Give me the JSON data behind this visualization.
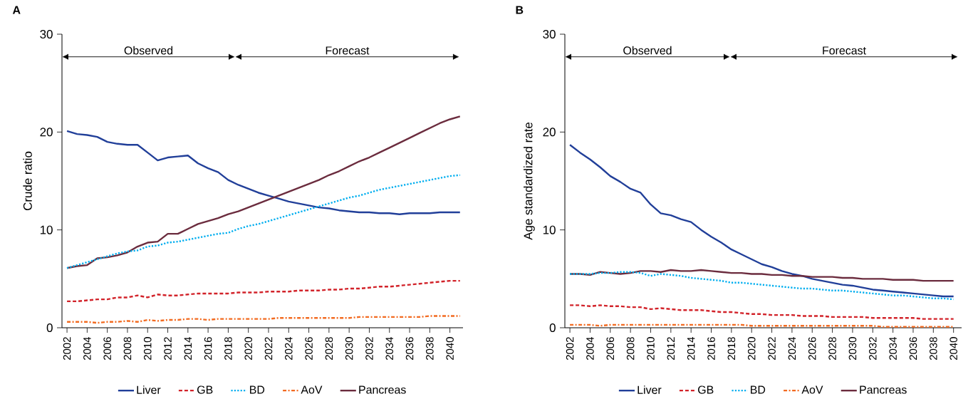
{
  "chart_data": [
    {
      "type": "line",
      "title": "A",
      "ylabel": "Crude ratio",
      "legend": "bottom",
      "x": [
        2002,
        2003,
        2004,
        2005,
        2006,
        2007,
        2008,
        2009,
        2010,
        2011,
        2012,
        2013,
        2014,
        2015,
        2016,
        2017,
        2018,
        2019,
        2020,
        2021,
        2022,
        2023,
        2024,
        2025,
        2026,
        2027,
        2028,
        2029,
        2030,
        2031,
        2032,
        2033,
        2034,
        2035,
        2036,
        2037,
        2038,
        2039,
        2040,
        2041
      ],
      "xlim": [
        2001.5,
        2041.3
      ],
      "xticks": [
        2002,
        2004,
        2006,
        2008,
        2010,
        2012,
        2014,
        2016,
        2018,
        2020,
        2022,
        2024,
        2026,
        2028,
        2030,
        2032,
        2034,
        2036,
        2038,
        2040
      ],
      "ylim": [
        0,
        30
      ],
      "yticks": [
        0,
        10,
        20,
        30
      ],
      "annotations": [
        "Observed",
        "Forecast"
      ],
      "series": [
        {
          "name": "Liver",
          "color": "#213f99",
          "line_style": "solid",
          "values": [
            20.1,
            19.8,
            19.7,
            19.5,
            19.0,
            18.8,
            18.7,
            18.7,
            17.9,
            17.1,
            17.4,
            17.5,
            17.6,
            16.8,
            16.3,
            15.9,
            15.1,
            14.6,
            14.2,
            13.8,
            13.5,
            13.2,
            12.9,
            12.7,
            12.5,
            12.3,
            12.2,
            12.0,
            11.9,
            11.8,
            11.8,
            11.7,
            11.7,
            11.6,
            11.7,
            11.7,
            11.7,
            11.8,
            11.8,
            11.8
          ]
        },
        {
          "name": "GB",
          "color": "#d2232a",
          "line_style": "dashed",
          "values": [
            2.7,
            2.7,
            2.8,
            2.9,
            2.9,
            3.1,
            3.1,
            3.3,
            3.1,
            3.4,
            3.3,
            3.3,
            3.4,
            3.5,
            3.5,
            3.5,
            3.5,
            3.6,
            3.6,
            3.6,
            3.7,
            3.7,
            3.7,
            3.8,
            3.8,
            3.8,
            3.9,
            3.9,
            4.0,
            4.0,
            4.1,
            4.2,
            4.2,
            4.3,
            4.4,
            4.5,
            4.6,
            4.7,
            4.8,
            4.8
          ]
        },
        {
          "name": "BD",
          "color": "#00aeef",
          "line_style": "dotted",
          "values": [
            6.1,
            6.4,
            6.7,
            7.0,
            7.3,
            7.6,
            7.8,
            7.9,
            8.3,
            8.4,
            8.7,
            8.8,
            9.0,
            9.2,
            9.4,
            9.6,
            9.7,
            10.1,
            10.4,
            10.6,
            10.9,
            11.2,
            11.5,
            11.8,
            12.1,
            12.4,
            12.7,
            13.0,
            13.3,
            13.5,
            13.8,
            14.1,
            14.3,
            14.5,
            14.7,
            14.9,
            15.1,
            15.3,
            15.5,
            15.6
          ]
        },
        {
          "name": "AoV",
          "color": "#f26b21",
          "line_style": "dashdotted",
          "values": [
            0.6,
            0.6,
            0.6,
            0.5,
            0.6,
            0.6,
            0.7,
            0.6,
            0.8,
            0.7,
            0.8,
            0.8,
            0.9,
            0.9,
            0.8,
            0.9,
            0.9,
            0.9,
            0.9,
            0.9,
            0.9,
            1.0,
            1.0,
            1.0,
            1.0,
            1.0,
            1.0,
            1.0,
            1.0,
            1.1,
            1.1,
            1.1,
            1.1,
            1.1,
            1.1,
            1.1,
            1.2,
            1.2,
            1.2,
            1.2
          ]
        },
        {
          "name": "Pancreas",
          "color": "#6b2c3e",
          "line_style": "solid",
          "values": [
            6.1,
            6.3,
            6.4,
            7.1,
            7.2,
            7.4,
            7.7,
            8.3,
            8.7,
            8.8,
            9.6,
            9.6,
            10.1,
            10.6,
            10.9,
            11.2,
            11.6,
            11.9,
            12.3,
            12.7,
            13.1,
            13.5,
            13.9,
            14.3,
            14.7,
            15.1,
            15.6,
            16.0,
            16.5,
            17.0,
            17.4,
            17.9,
            18.4,
            18.9,
            19.4,
            19.9,
            20.4,
            20.9,
            21.3,
            21.6
          ]
        }
      ]
    },
    {
      "type": "line",
      "title": "B",
      "ylabel": "Age standardized rate",
      "legend": "bottom",
      "x": [
        2002,
        2003,
        2004,
        2005,
        2006,
        2007,
        2008,
        2009,
        2010,
        2011,
        2012,
        2013,
        2014,
        2015,
        2016,
        2017,
        2018,
        2019,
        2020,
        2021,
        2022,
        2023,
        2024,
        2025,
        2026,
        2027,
        2028,
        2029,
        2030,
        2031,
        2032,
        2033,
        2034,
        2035,
        2036,
        2037,
        2038,
        2039,
        2040
      ],
      "xlim": [
        2001.5,
        2040.8
      ],
      "xticks": [
        2002,
        2004,
        2006,
        2008,
        2010,
        2012,
        2014,
        2016,
        2018,
        2020,
        2022,
        2024,
        2026,
        2028,
        2030,
        2032,
        2034,
        2036,
        2038,
        2040
      ],
      "ylim": [
        0,
        30
      ],
      "yticks": [
        0,
        10,
        20,
        30
      ],
      "annotations": [
        "Observed",
        "Forecast"
      ],
      "series": [
        {
          "name": "Liver",
          "color": "#213f99",
          "line_style": "solid",
          "values": [
            18.7,
            17.9,
            17.2,
            16.4,
            15.5,
            14.9,
            14.2,
            13.8,
            12.6,
            11.7,
            11.5,
            11.1,
            10.8,
            10.0,
            9.3,
            8.7,
            8.0,
            7.5,
            7.0,
            6.5,
            6.2,
            5.8,
            5.5,
            5.3,
            5.0,
            4.8,
            4.6,
            4.4,
            4.3,
            4.1,
            3.9,
            3.8,
            3.7,
            3.6,
            3.5,
            3.4,
            3.3,
            3.2,
            3.2
          ]
        },
        {
          "name": "GB",
          "color": "#d2232a",
          "line_style": "dashed",
          "values": [
            2.3,
            2.3,
            2.2,
            2.3,
            2.2,
            2.2,
            2.1,
            2.1,
            1.9,
            2.0,
            1.9,
            1.8,
            1.8,
            1.8,
            1.7,
            1.6,
            1.6,
            1.5,
            1.4,
            1.4,
            1.3,
            1.3,
            1.3,
            1.2,
            1.2,
            1.2,
            1.1,
            1.1,
            1.1,
            1.1,
            1.0,
            1.0,
            1.0,
            1.0,
            1.0,
            0.9,
            0.9,
            0.9,
            0.9
          ]
        },
        {
          "name": "BD",
          "color": "#00aeef",
          "line_style": "dotted",
          "values": [
            5.5,
            5.5,
            5.5,
            5.6,
            5.6,
            5.7,
            5.7,
            5.6,
            5.3,
            5.5,
            5.4,
            5.3,
            5.1,
            5.0,
            4.9,
            4.8,
            4.6,
            4.6,
            4.5,
            4.4,
            4.3,
            4.2,
            4.1,
            4.0,
            4.0,
            3.9,
            3.8,
            3.8,
            3.7,
            3.6,
            3.5,
            3.4,
            3.3,
            3.3,
            3.2,
            3.1,
            3.0,
            3.0,
            2.9
          ]
        },
        {
          "name": "AoV",
          "color": "#f26b21",
          "line_style": "dashdotted",
          "values": [
            0.3,
            0.3,
            0.3,
            0.2,
            0.3,
            0.3,
            0.3,
            0.3,
            0.3,
            0.3,
            0.3,
            0.3,
            0.3,
            0.3,
            0.3,
            0.3,
            0.3,
            0.3,
            0.2,
            0.2,
            0.2,
            0.2,
            0.2,
            0.2,
            0.2,
            0.2,
            0.2,
            0.2,
            0.2,
            0.2,
            0.2,
            0.1,
            0.1,
            0.1,
            0.1,
            0.1,
            0.1,
            0.1,
            0.1
          ]
        },
        {
          "name": "Pancreas",
          "color": "#6b2c3e",
          "line_style": "solid",
          "values": [
            5.5,
            5.5,
            5.4,
            5.7,
            5.6,
            5.5,
            5.6,
            5.8,
            5.8,
            5.7,
            5.9,
            5.8,
            5.8,
            5.9,
            5.8,
            5.7,
            5.6,
            5.6,
            5.5,
            5.5,
            5.4,
            5.4,
            5.3,
            5.3,
            5.2,
            5.2,
            5.2,
            5.1,
            5.1,
            5.0,
            5.0,
            5.0,
            4.9,
            4.9,
            4.9,
            4.8,
            4.8,
            4.8,
            4.8
          ]
        }
      ]
    }
  ]
}
